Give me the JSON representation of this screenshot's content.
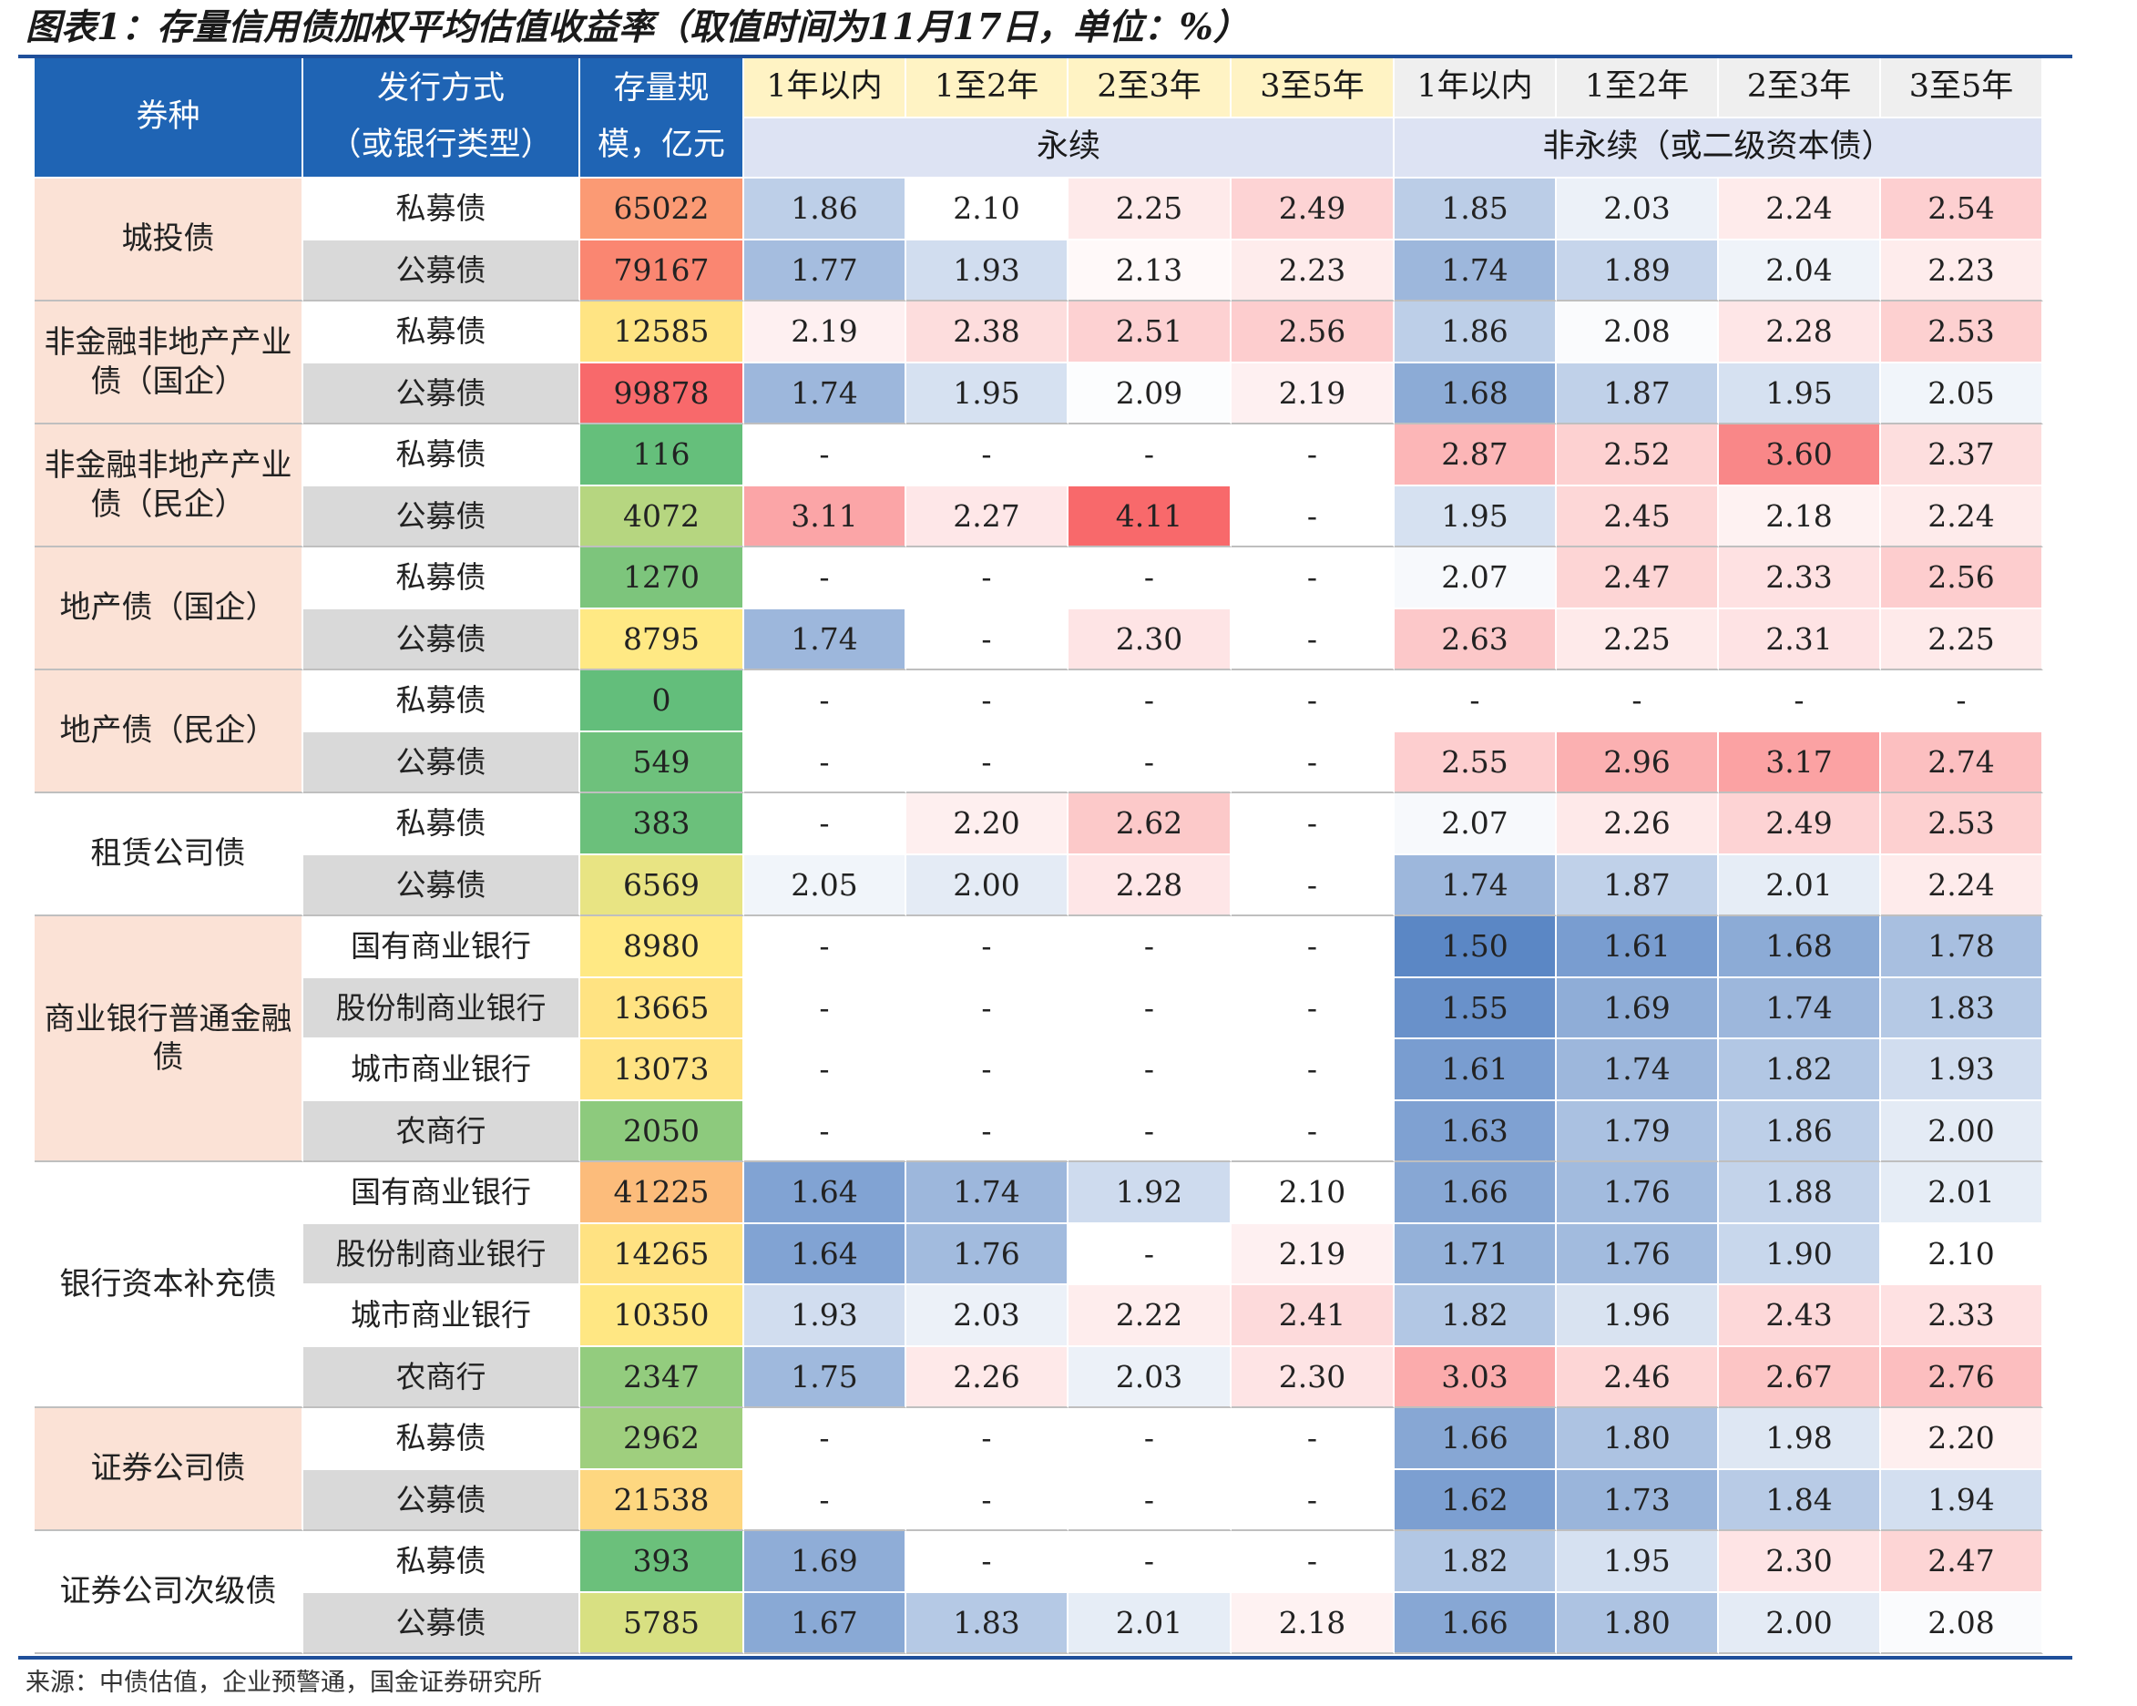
{
  "title": "图表1：存量信用债加权平均估值收益率（取值时间为11月17日，单位：%）",
  "source": "来源：中债估值，企业预警通，国金证券研究所",
  "colors": {
    "header_blue": "#1f64b4",
    "header_yellow": "#fff3c4",
    "header_gray": "#efefef",
    "category_peach": "#fbe2d6",
    "low_yield_blue": "#5b87c5",
    "high_yield_red": "#f8696b",
    "scale_green": "#63be7b",
    "scale_yellow": "#ffeb84",
    "scale_red": "#f8696b"
  },
  "chart_data": {
    "type": "table",
    "headers": {
      "bond_type": "券种",
      "issue_method": [
        "发行方式",
        "（或银行类型）"
      ],
      "scale": [
        "存量规",
        "模，亿元"
      ],
      "perpetual_group": "永续",
      "nonperpetual_group": "非永续（或二级资本债）",
      "terms": [
        "1年以内",
        "1至2年",
        "2至3年",
        "3至5年"
      ]
    },
    "groups": [
      {
        "category": "城投债",
        "rows": [
          {
            "sub": "私募债",
            "scale": "65022",
            "perp": [
              "1.86",
              "2.10",
              "2.25",
              "2.49"
            ],
            "nonperp": [
              "1.85",
              "2.03",
              "2.24",
              "2.54"
            ]
          },
          {
            "sub": "公募债",
            "scale": "79167",
            "perp": [
              "1.77",
              "1.93",
              "2.13",
              "2.23"
            ],
            "nonperp": [
              "1.74",
              "1.89",
              "2.04",
              "2.23"
            ]
          }
        ]
      },
      {
        "category": "非金融非地产产业债（国企）",
        "rows": [
          {
            "sub": "私募债",
            "scale": "12585",
            "perp": [
              "2.19",
              "2.38",
              "2.51",
              "2.56"
            ],
            "nonperp": [
              "1.86",
              "2.08",
              "2.28",
              "2.53"
            ]
          },
          {
            "sub": "公募债",
            "scale": "99878",
            "perp": [
              "1.74",
              "1.95",
              "2.09",
              "2.19"
            ],
            "nonperp": [
              "1.68",
              "1.87",
              "1.95",
              "2.05"
            ]
          }
        ]
      },
      {
        "category": "非金融非地产产业债（民企）",
        "rows": [
          {
            "sub": "私募债",
            "scale": "116",
            "perp": [
              "-",
              "-",
              "-",
              "-"
            ],
            "nonperp": [
              "2.87",
              "2.52",
              "3.60",
              "2.37"
            ]
          },
          {
            "sub": "公募债",
            "scale": "4072",
            "perp": [
              "3.11",
              "2.27",
              "4.11",
              "-"
            ],
            "nonperp": [
              "1.95",
              "2.45",
              "2.18",
              "2.24"
            ]
          }
        ]
      },
      {
        "category": "地产债（国企）",
        "rows": [
          {
            "sub": "私募债",
            "scale": "1270",
            "perp": [
              "-",
              "-",
              "-",
              "-"
            ],
            "nonperp": [
              "2.07",
              "2.47",
              "2.33",
              "2.56"
            ]
          },
          {
            "sub": "公募债",
            "scale": "8795",
            "perp": [
              "1.74",
              "-",
              "2.30",
              "-"
            ],
            "nonperp": [
              "2.63",
              "2.25",
              "2.31",
              "2.25"
            ]
          }
        ]
      },
      {
        "category": "地产债（民企）",
        "rows": [
          {
            "sub": "私募债",
            "scale": "0",
            "perp": [
              "-",
              "-",
              "-",
              "-"
            ],
            "nonperp": [
              "-",
              "-",
              "-",
              "-"
            ]
          },
          {
            "sub": "公募债",
            "scale": "549",
            "perp": [
              "-",
              "-",
              "-",
              "-"
            ],
            "nonperp": [
              "2.55",
              "2.96",
              "3.17",
              "2.74"
            ]
          }
        ]
      },
      {
        "category": "租赁公司债",
        "rows": [
          {
            "sub": "私募债",
            "scale": "383",
            "perp": [
              "-",
              "2.20",
              "2.62",
              "-"
            ],
            "nonperp": [
              "2.07",
              "2.26",
              "2.49",
              "2.53"
            ]
          },
          {
            "sub": "公募债",
            "scale": "6569",
            "perp": [
              "2.05",
              "2.00",
              "2.28",
              "-"
            ],
            "nonperp": [
              "1.74",
              "1.87",
              "2.01",
              "2.24"
            ]
          }
        ]
      },
      {
        "category": "商业银行普通金融债",
        "rows": [
          {
            "sub": "国有商业银行",
            "scale": "8980",
            "perp": [
              "-",
              "-",
              "-",
              "-"
            ],
            "nonperp": [
              "1.50",
              "1.61",
              "1.68",
              "1.78"
            ]
          },
          {
            "sub": "股份制商业银行",
            "scale": "13665",
            "perp": [
              "-",
              "-",
              "-",
              "-"
            ],
            "nonperp": [
              "1.55",
              "1.69",
              "1.74",
              "1.83"
            ]
          },
          {
            "sub": "城市商业银行",
            "scale": "13073",
            "perp": [
              "-",
              "-",
              "-",
              "-"
            ],
            "nonperp": [
              "1.61",
              "1.74",
              "1.82",
              "1.93"
            ]
          },
          {
            "sub": "农商行",
            "scale": "2050",
            "perp": [
              "-",
              "-",
              "-",
              "-"
            ],
            "nonperp": [
              "1.63",
              "1.79",
              "1.86",
              "2.00"
            ]
          }
        ]
      },
      {
        "category": "银行资本补充债",
        "rows": [
          {
            "sub": "国有商业银行",
            "scale": "41225",
            "perp": [
              "1.64",
              "1.74",
              "1.92",
              "2.10"
            ],
            "nonperp": [
              "1.66",
              "1.76",
              "1.88",
              "2.01"
            ]
          },
          {
            "sub": "股份制商业银行",
            "scale": "14265",
            "perp": [
              "1.64",
              "1.76",
              "-",
              "2.19"
            ],
            "nonperp": [
              "1.71",
              "1.76",
              "1.90",
              "2.10"
            ]
          },
          {
            "sub": "城市商业银行",
            "scale": "10350",
            "perp": [
              "1.93",
              "2.03",
              "2.22",
              "2.41"
            ],
            "nonperp": [
              "1.82",
              "1.96",
              "2.43",
              "2.33"
            ]
          },
          {
            "sub": "农商行",
            "scale": "2347",
            "perp": [
              "1.75",
              "2.26",
              "2.03",
              "2.30"
            ],
            "nonperp": [
              "3.03",
              "2.46",
              "2.67",
              "2.76"
            ]
          }
        ]
      },
      {
        "category": "证券公司债",
        "rows": [
          {
            "sub": "私募债",
            "scale": "2962",
            "perp": [
              "-",
              "-",
              "-",
              "-"
            ],
            "nonperp": [
              "1.66",
              "1.80",
              "1.98",
              "2.20"
            ]
          },
          {
            "sub": "公募债",
            "scale": "21538",
            "perp": [
              "-",
              "-",
              "-",
              "-"
            ],
            "nonperp": [
              "1.62",
              "1.73",
              "1.84",
              "1.94"
            ]
          }
        ]
      },
      {
        "category": "证券公司次级债",
        "rows": [
          {
            "sub": "私募债",
            "scale": "393",
            "perp": [
              "1.69",
              "-",
              "-",
              "-"
            ],
            "nonperp": [
              "1.82",
              "1.95",
              "2.30",
              "2.47"
            ]
          },
          {
            "sub": "公募债",
            "scale": "5785",
            "perp": [
              "1.67",
              "1.83",
              "2.01",
              "2.18"
            ],
            "nonperp": [
              "1.66",
              "1.80",
              "2.00",
              "2.08"
            ]
          }
        ]
      }
    ]
  }
}
